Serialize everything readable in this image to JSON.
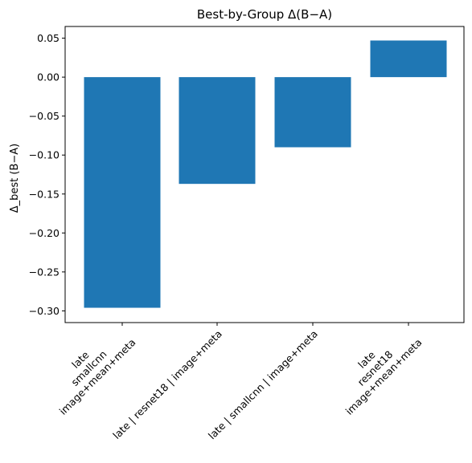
{
  "chart_data": {
    "type": "bar",
    "title": "Best-by-Group Δ(B−A)",
    "xlabel": "",
    "ylabel": "Δ_best (B−A)",
    "categories": [
      [
        "late",
        "smallcnn",
        "image+mean+meta"
      ],
      [
        "late | resnet18 | image+meta"
      ],
      [
        "late | smallcnn | image+meta"
      ],
      [
        "late",
        "resnet18",
        "image+mean+meta"
      ]
    ],
    "values": [
      -0.296,
      -0.137,
      -0.09,
      0.047
    ],
    "ylim": [
      -0.315,
      0.065
    ],
    "yticks": [
      0.05,
      0.0,
      -0.05,
      -0.1,
      -0.15,
      -0.2,
      -0.25,
      -0.3
    ],
    "ytick_labels": [
      "0.05",
      "0.00",
      "−0.05",
      "−0.10",
      "−0.15",
      "−0.20",
      "−0.25",
      "−0.30"
    ],
    "bar_color": "#1f77b4",
    "grid": false,
    "legend": false
  }
}
